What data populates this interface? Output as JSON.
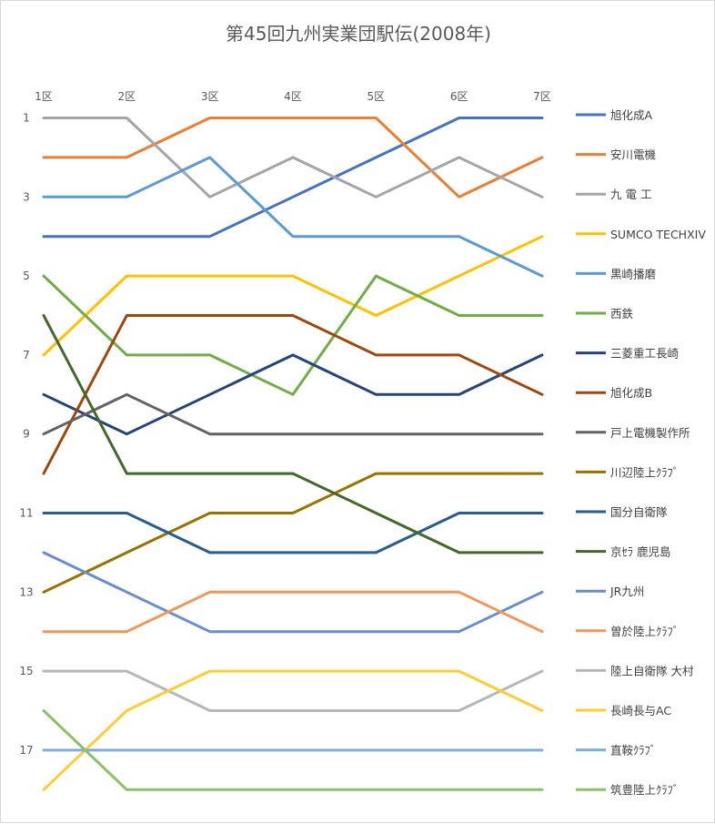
{
  "chart_data": {
    "type": "line",
    "title": "第45回九州実業団駅伝(2008年)",
    "categories": [
      "1区",
      "2区",
      "3区",
      "4区",
      "5区",
      "6区",
      "7区"
    ],
    "y_tick_labels": [
      "1",
      "3",
      "5",
      "7",
      "9",
      "11",
      "13",
      "15",
      "17"
    ],
    "ylim": [
      1,
      18
    ],
    "y_reversed": true,
    "grid": false,
    "legend_position": "right",
    "series": [
      {
        "name": "旭化成A",
        "color": "#4472C4",
        "values": [
          4,
          4,
          4,
          3,
          2,
          1,
          1
        ]
      },
      {
        "name": "安川電機",
        "color": "#ED7D31",
        "values": [
          2,
          2,
          1,
          1,
          1,
          3,
          2
        ]
      },
      {
        "name": "九 電 工",
        "color": "#A5A5A5",
        "values": [
          1,
          1,
          3,
          2,
          3,
          2,
          3
        ]
      },
      {
        "name": "SUMCO TECHXIV",
        "color": "#FFC000",
        "values": [
          7,
          5,
          5,
          5,
          6,
          5,
          4
        ]
      },
      {
        "name": "黒崎播磨",
        "color": "#5B9BD5",
        "values": [
          3,
          3,
          2,
          4,
          4,
          4,
          5
        ]
      },
      {
        "name": "西鉄",
        "color": "#70AD47",
        "values": [
          5,
          7,
          7,
          8,
          5,
          6,
          6
        ]
      },
      {
        "name": "三菱重工長崎",
        "color": "#264478",
        "values": [
          8,
          9,
          8,
          7,
          8,
          8,
          7
        ]
      },
      {
        "name": "旭化成B",
        "color": "#9E480E",
        "values": [
          10,
          6,
          6,
          6,
          7,
          7,
          8
        ]
      },
      {
        "name": "戸上電機製作所",
        "color": "#636363",
        "values": [
          9,
          8,
          9,
          9,
          9,
          9,
          9
        ]
      },
      {
        "name": "川辺陸上ｸﾗﾌﾞ",
        "color": "#997300",
        "values": [
          13,
          12,
          11,
          11,
          10,
          10,
          10
        ]
      },
      {
        "name": "国分自衛隊",
        "color": "#255E91",
        "values": [
          11,
          11,
          12,
          12,
          12,
          11,
          11
        ]
      },
      {
        "name": "京ｾﾗ 鹿児島",
        "color": "#43682B",
        "values": [
          6,
          10,
          10,
          10,
          11,
          12,
          12
        ]
      },
      {
        "name": "JR九州",
        "color": "#698ED0",
        "values": [
          12,
          13,
          14,
          14,
          14,
          14,
          13
        ]
      },
      {
        "name": "曽於陸上ｸﾗﾌﾞ",
        "color": "#F1975A",
        "values": [
          14,
          14,
          13,
          13,
          13,
          13,
          14
        ]
      },
      {
        "name": "陸上自衛隊 大村",
        "color": "#B7B7B7",
        "values": [
          15,
          15,
          16,
          16,
          16,
          16,
          15
        ]
      },
      {
        "name": "長崎長与AC",
        "color": "#FFCD33",
        "values": [
          18,
          16,
          15,
          15,
          15,
          15,
          16
        ]
      },
      {
        "name": "直鞍ｸﾗﾌﾞ",
        "color": "#7CAFDD",
        "values": [
          17,
          17,
          17,
          17,
          17,
          17,
          17
        ]
      },
      {
        "name": "筑豊陸上ｸﾗﾌﾞ",
        "color": "#8CC168",
        "values": [
          16,
          18,
          18,
          18,
          18,
          18,
          18
        ]
      }
    ]
  }
}
